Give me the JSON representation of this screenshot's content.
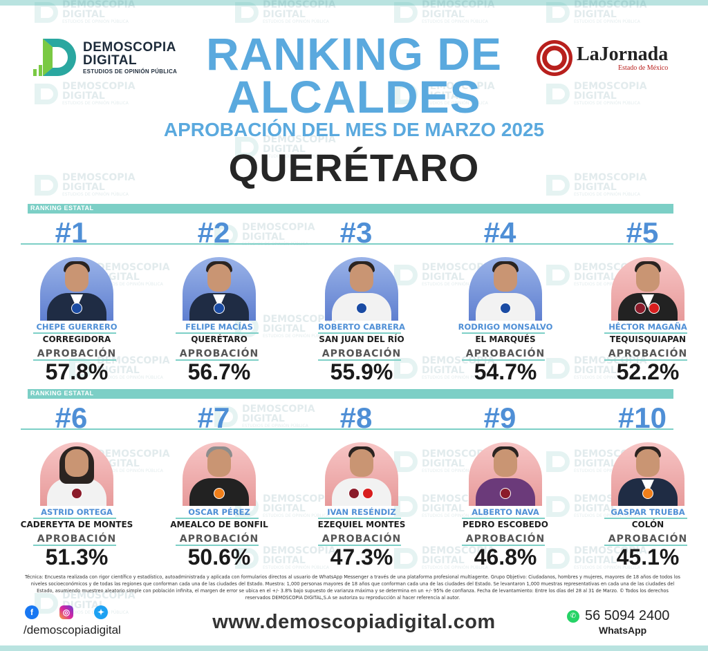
{
  "header": {
    "logo_left": {
      "line1": "DEMOSCOPIA",
      "line2": "DIGITAL",
      "line3": "ESTUDIOS DE OPINIÓN PÚBLICA"
    },
    "title_line1": "RANKING DE",
    "title_line2": "ALCALDES",
    "subtitle": "APROBACIÓN DEL MES DE MARZO 2025",
    "state": "QUERÉTARO",
    "logo_right": {
      "name": "LaJornada",
      "sub": "Estado de México"
    }
  },
  "section_label": "RANKING ESTATAL",
  "approval_label": "APROBACIÓN",
  "mayors": [
    {
      "rank": "#1",
      "name": "CHEPE GUERRERO",
      "municipality": "CORREGIDORA",
      "approval": "57.8%",
      "party": "PAN",
      "bg": "blue"
    },
    {
      "rank": "#2",
      "name": "FELIPE MACÍAS",
      "municipality": "QUERÉTARO",
      "approval": "56.7%",
      "party": "PAN",
      "bg": "blue"
    },
    {
      "rank": "#3",
      "name": "ROBERTO CABRERA",
      "municipality": "SAN JUAN DEL RÍO",
      "approval": "55.9%",
      "party": "PAN",
      "bg": "blue"
    },
    {
      "rank": "#4",
      "name": "RODRIGO MONSALVO",
      "municipality": "EL MARQUÉS",
      "approval": "54.7%",
      "party": "PAN",
      "bg": "blue"
    },
    {
      "rank": "#5",
      "name": "HÉCTOR MAGAÑA",
      "municipality": "TEQUISQUIAPAN",
      "approval": "52.2%",
      "party": "MORENA-PT",
      "bg": "pink"
    },
    {
      "rank": "#6",
      "name": "ASTRID ORTEGA",
      "municipality": "CADEREYTA DE MONTES",
      "approval": "51.3%",
      "party": "MORENA",
      "bg": "pink"
    },
    {
      "rank": "#7",
      "name": "OSCAR PÉREZ",
      "municipality": "AMEALCO DE BONFIL",
      "approval": "50.6%",
      "party": "MC",
      "bg": "pink"
    },
    {
      "rank": "#8",
      "name": "IVAN RESÉNDIZ",
      "municipality": "EZEQUIEL MONTES",
      "approval": "47.3%",
      "party": "MORENA-PT",
      "bg": "pink"
    },
    {
      "rank": "#9",
      "name": "ALBERTO NAVA",
      "municipality": "PEDRO ESCOBEDO",
      "approval": "46.8%",
      "party": "MORENA",
      "bg": "pink"
    },
    {
      "rank": "#10",
      "name": "GASPAR TRUEBA",
      "municipality": "COLÓN",
      "approval": "45.1%",
      "party": "MC",
      "bg": "pink"
    }
  ],
  "footer": {
    "tecnica": "Técnica: Encuesta realizada con rigor científico y estadístico, autoadministrada y aplicada con formularios directos al usuario de WhatsApp Messenger a través de una plataforma profesional multiagente. Grupo Objetivo: Ciudadanos, hombres y mujeres, mayores de 18 años de todos los niveles socioeconómicos y de todas las regiones que conforman cada una de las ciudades del Estado. Muestra: 1,000 personas mayores de 18 años que conforman cada una de las ciudades del Estado. Se levantaron 1,000 muestras representativas en cada una de las ciudades del Estado, asumiendo muestreo aleatorio simple con población infinita, el margen de error se ubica en el +/- 3.8% bajo supuesto de varianza máxima y se determina en un +/- 95% de confianza. Fecha de levantamiento: Entre los días del 28 al 31 de Marzo. © Todos los derechos reservados DEMOSCOPIA DIGITAL,S.A se autoriza su reproducción al hacer referencia al autor.",
    "handle": "/demoscopiadigital",
    "website": "www.demoscopiadigital.com",
    "phone": "56 5094 2400",
    "phone_label": "WhatsApp"
  },
  "colors": {
    "accent_blue": "#5aa9de",
    "teal": "#7ccfc6",
    "pan": "#1a4ba3",
    "morena": "#8b1c2b",
    "mc": "#f07f1a"
  }
}
